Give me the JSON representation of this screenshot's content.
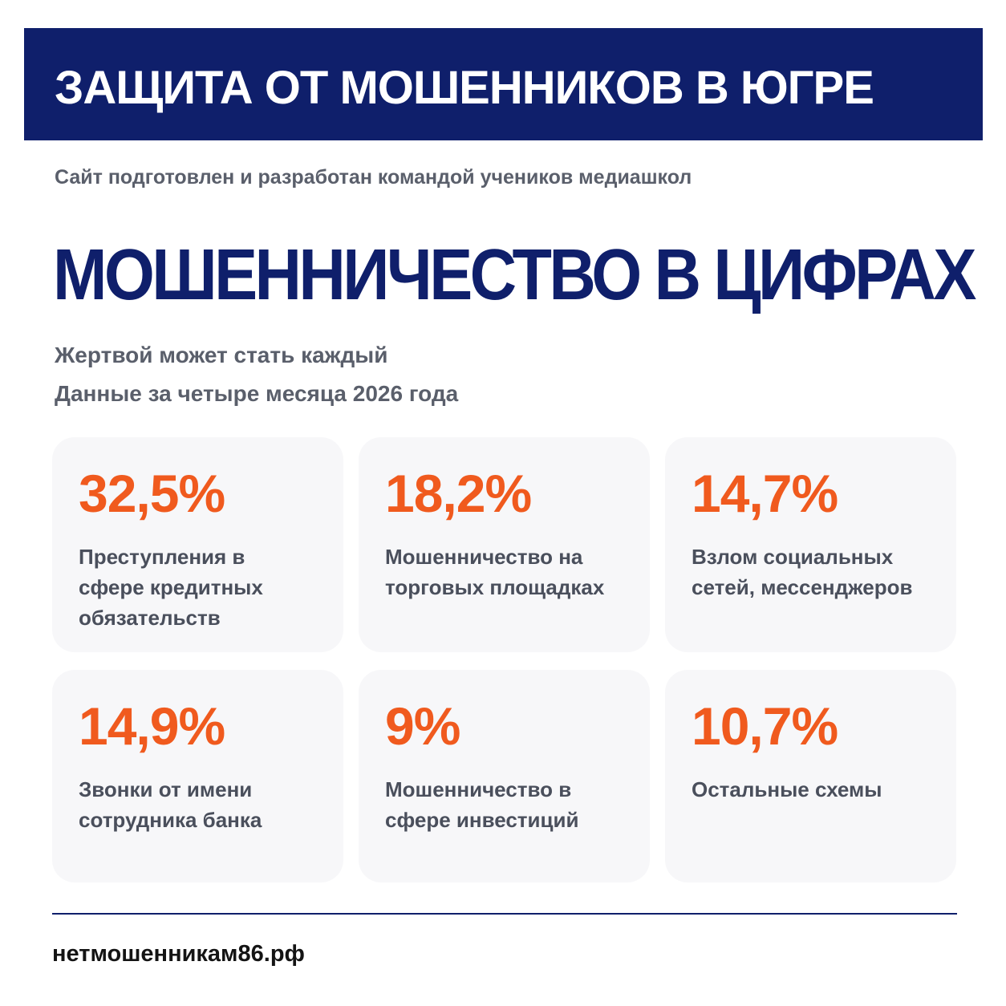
{
  "header": {
    "title": "ЗАЩИТА ОТ МОШЕННИКОВ В ЮГРЕ"
  },
  "credit": "Сайт подготовлен и разработан командой учеников медиашкол",
  "main": {
    "title": "МОШЕННИЧЕСТВО В ЦИФРАХ",
    "subtitle_line1": "Жертвой может стать каждый",
    "subtitle_line2": "Данные за четыре месяца 2026 года"
  },
  "stats": [
    {
      "value": "32,5%",
      "label": "Преступления в\nсфере кредитных\nобязательств"
    },
    {
      "value": "18,2%",
      "label": "Мошенничество на\nторговых площадках"
    },
    {
      "value": "14,7%",
      "label": "Взлом социальных\nсетей, мессенджеров"
    },
    {
      "value": "14,9%",
      "label": "Звонки от имени\nсотрудника банка"
    },
    {
      "value": "9%",
      "label": "Мошенничество в\nсфере инвестиций"
    },
    {
      "value": "10,7%",
      "label": "Остальные схемы"
    }
  ],
  "footer": {
    "site": "нетмошенникам86.рф"
  },
  "colors": {
    "brand_navy": "#0f1f6b",
    "accent_orange": "#f05a1e",
    "card_background": "#f7f7f9",
    "muted_text": "#5a5f6b"
  }
}
